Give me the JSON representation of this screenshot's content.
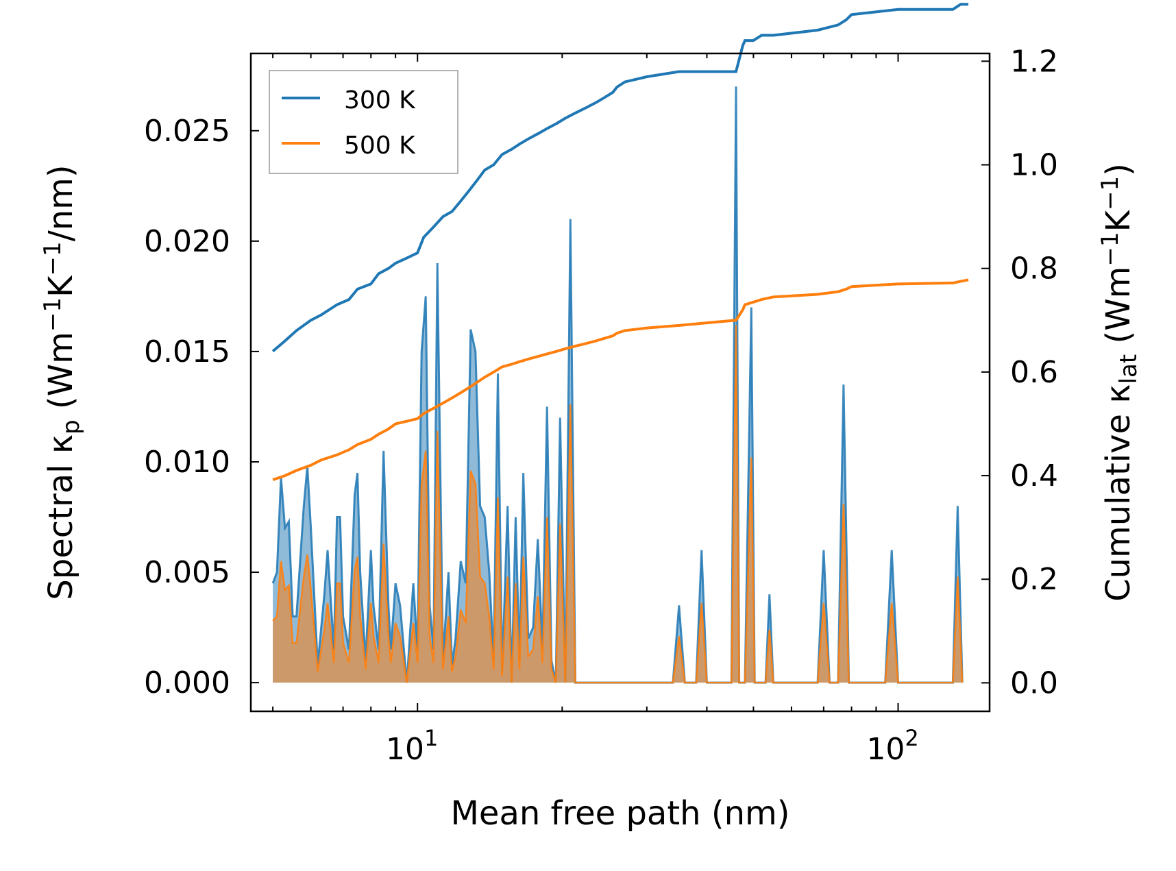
{
  "chart_data": {
    "type": "line",
    "xscale": "log",
    "xlabel": "Mean free path (nm)",
    "xlim": [
      4.5,
      155
    ],
    "x_ticks": [
      {
        "base": "10",
        "exp": "1",
        "value": 10
      },
      {
        "base": "10",
        "exp": "2",
        "value": 100
      }
    ],
    "ylabel_left": {
      "main": "Spectral κ",
      "sub": "p",
      "units_pre": " (Wm",
      "exp1": "−1",
      "units_mid": "K",
      "exp2": "−1",
      "units_post": "/nm)"
    },
    "ylabel_right": {
      "main": "Cumulative κ",
      "sub": "lat",
      "units_pre": " (Wm",
      "exp1": "−1",
      "units_mid": "K",
      "exp2": "−1",
      "units_post": ")"
    },
    "ylim_left": [
      -0.0013,
      0.0285
    ],
    "ylim_right": [
      -0.055,
      1.215
    ],
    "left_ticks": [
      "0.000",
      "0.005",
      "0.010",
      "0.015",
      "0.020",
      "0.025"
    ],
    "left_tick_values": [
      0,
      0.005,
      0.01,
      0.015,
      0.02,
      0.025
    ],
    "right_ticks": [
      "0.0",
      "0.2",
      "0.4",
      "0.6",
      "0.8",
      "1.0",
      "1.2"
    ],
    "right_tick_values": [
      0,
      0.2,
      0.4,
      0.6,
      0.8,
      1.0,
      1.2
    ],
    "legend": {
      "position": "top-left",
      "entries": [
        {
          "label": "300 K",
          "color": "#1f77b4"
        },
        {
          "label": "500 K",
          "color": "#ff7f0e"
        }
      ]
    },
    "spectral_x": [
      5.0,
      5.1,
      5.2,
      5.3,
      5.4,
      5.5,
      5.6,
      5.8,
      5.9,
      6.0,
      6.2,
      6.4,
      6.5,
      6.7,
      6.8,
      6.9,
      7.0,
      7.2,
      7.4,
      7.5,
      7.6,
      7.8,
      8.0,
      8.1,
      8.3,
      8.5,
      8.7,
      8.8,
      9.0,
      9.2,
      9.5,
      9.8,
      10.0,
      10.2,
      10.4,
      10.6,
      10.8,
      11.0,
      11.3,
      11.6,
      11.8,
      12.0,
      12.3,
      12.6,
      12.9,
      13.2,
      13.5,
      13.8,
      14.1,
      14.4,
      14.7,
      15.0,
      15.4,
      15.7,
      16.0,
      16.3,
      16.6,
      17.0,
      17.4,
      17.8,
      18.2,
      18.6,
      19.0,
      19.4,
      19.8,
      20.3,
      20.8,
      21.3,
      21.9,
      22.4,
      22.9,
      23.4,
      23.9,
      24.4,
      24.9,
      25.4,
      26.0,
      26.5,
      27.0,
      28.0,
      30.0,
      34.0,
      35.0,
      36.0,
      38.0,
      39.0,
      40.0,
      41.0,
      45.0,
      46.0,
      46.7,
      47.5,
      48.0,
      49.5,
      50.3,
      51.0,
      53.0,
      54.0,
      55.0,
      68.0,
      70.0,
      72.0,
      75.0,
      77.0,
      79.0,
      94.0,
      97.0,
      100.0,
      130.0,
      133.0,
      136.0
    ],
    "spectral_300K": [
      0.0045,
      0.005,
      0.0093,
      0.007,
      0.0073,
      0.003,
      0.003,
      0.008,
      0.0098,
      0.007,
      0.0008,
      0.004,
      0.006,
      0.0015,
      0.0075,
      0.0075,
      0.003,
      0.0015,
      0.0085,
      0.0095,
      0.005,
      0.001,
      0.006,
      0.0035,
      0.0015,
      0.0105,
      0.0035,
      0.0015,
      0.0045,
      0.0035,
      0.0,
      0.0045,
      0.0015,
      0.015,
      0.0175,
      0.0035,
      0.0015,
      0.019,
      0.001,
      0.005,
      0.0008,
      0.002,
      0.0055,
      0.0045,
      0.016,
      0.015,
      0.008,
      0.0075,
      0.005,
      0.001,
      0.014,
      0.0005,
      0.008,
      0.0,
      0.0075,
      0.001,
      0.0095,
      0.002,
      0.0025,
      0.0065,
      0.0015,
      0.0125,
      0.001,
      0.0,
      0.012,
      0.0,
      0.021,
      0.0,
      0.0,
      0.0,
      0.0,
      0.0,
      0.0,
      0.0,
      0.0,
      0.0,
      0.0,
      0.0,
      0.0,
      0.0,
      0.0,
      0.0,
      0.0035,
      0.0,
      0.0,
      0.006,
      0.0,
      0.0,
      0.0,
      0.027,
      0.0,
      0.0,
      0.0,
      0.017,
      0.0,
      0.0,
      0.0,
      0.004,
      0.0,
      0.0,
      0.006,
      0.0,
      0.0,
      0.0135,
      0.0,
      0.0,
      0.006,
      0.0,
      0.0,
      0.008,
      0.0
    ],
    "spectral_500K": [
      0.0028,
      0.003,
      0.0055,
      0.0042,
      0.0044,
      0.0018,
      0.0018,
      0.0048,
      0.0058,
      0.0042,
      0.0005,
      0.0024,
      0.0036,
      0.0009,
      0.0045,
      0.0045,
      0.0018,
      0.0009,
      0.0051,
      0.0057,
      0.003,
      0.0006,
      0.0036,
      0.0021,
      0.0009,
      0.0063,
      0.0021,
      0.0009,
      0.0027,
      0.0021,
      0.0,
      0.0027,
      0.0009,
      0.009,
      0.0105,
      0.0021,
      0.0009,
      0.0114,
      0.0006,
      0.003,
      0.0005,
      0.0012,
      0.0033,
      0.0027,
      0.0096,
      0.009,
      0.0048,
      0.0045,
      0.003,
      0.0006,
      0.0084,
      0.0003,
      0.0048,
      0.0,
      0.0045,
      0.0006,
      0.0057,
      0.0012,
      0.0015,
      0.0039,
      0.0009,
      0.0075,
      0.0006,
      0.0,
      0.0072,
      0.0,
      0.0126,
      0.0,
      0.0,
      0.0,
      0.0,
      0.0,
      0.0,
      0.0,
      0.0,
      0.0,
      0.0,
      0.0,
      0.0,
      0.0,
      0.0,
      0.0,
      0.0021,
      0.0,
      0.0,
      0.0036,
      0.0,
      0.0,
      0.0,
      0.0162,
      0.0,
      0.0,
      0.0,
      0.0102,
      0.0,
      0.0,
      0.0,
      0.0024,
      0.0,
      0.0,
      0.0036,
      0.0,
      0.0,
      0.0081,
      0.0,
      0.0,
      0.0036,
      0.0,
      0.0,
      0.0048,
      0.0
    ],
    "cumulative_x": [
      5.0,
      5.3,
      5.6,
      6.0,
      6.3,
      6.8,
      7.2,
      7.5,
      8.0,
      8.3,
      8.7,
      9.0,
      9.5,
      10.0,
      10.3,
      10.8,
      11.3,
      11.8,
      12.3,
      12.8,
      13.3,
      13.8,
      14.4,
      15.0,
      15.7,
      16.3,
      17.0,
      17.8,
      18.6,
      19.5,
      20.3,
      21.3,
      22.4,
      23.5,
      24.5,
      25.5,
      26.0,
      27.0,
      30.0,
      35.0,
      40.0,
      46.0,
      47.5,
      48.0,
      50.0,
      52.0,
      55.0,
      68.0,
      75.0,
      78.0,
      80.0,
      100.0,
      130.0,
      135.0,
      140.0
    ],
    "cumulative_300K": [
      0.64,
      0.66,
      0.68,
      0.7,
      0.71,
      0.73,
      0.74,
      0.76,
      0.77,
      0.79,
      0.8,
      0.81,
      0.82,
      0.83,
      0.86,
      0.88,
      0.9,
      0.91,
      0.93,
      0.95,
      0.97,
      0.99,
      1.0,
      1.02,
      1.03,
      1.04,
      1.05,
      1.06,
      1.07,
      1.08,
      1.09,
      1.1,
      1.11,
      1.12,
      1.13,
      1.14,
      1.15,
      1.16,
      1.17,
      1.18,
      1.18,
      1.18,
      1.23,
      1.24,
      1.24,
      1.25,
      1.25,
      1.26,
      1.27,
      1.28,
      1.29,
      1.3,
      1.3,
      1.31,
      1.31
    ],
    "cumulative_500K": [
      0.392,
      0.4,
      0.41,
      0.42,
      0.43,
      0.44,
      0.45,
      0.46,
      0.47,
      0.48,
      0.49,
      0.5,
      0.505,
      0.51,
      0.52,
      0.53,
      0.54,
      0.55,
      0.56,
      0.57,
      0.58,
      0.59,
      0.6,
      0.61,
      0.615,
      0.62,
      0.625,
      0.63,
      0.635,
      0.64,
      0.645,
      0.65,
      0.655,
      0.66,
      0.665,
      0.67,
      0.675,
      0.68,
      0.685,
      0.69,
      0.695,
      0.7,
      0.72,
      0.73,
      0.735,
      0.74,
      0.745,
      0.75,
      0.755,
      0.76,
      0.765,
      0.77,
      0.772,
      0.775,
      0.778
    ]
  }
}
